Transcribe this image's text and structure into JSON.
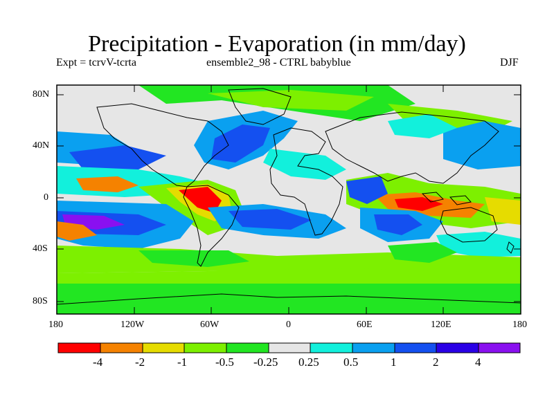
{
  "title": "Precipitation - Evaporation (in mm/day)",
  "subtitle_left": "Expt = tcrvV-tcrta",
  "subtitle_center": "ensemble2_98 - CTRL babyblue",
  "subtitle_right": "DJF",
  "lat_labels": [
    "80N",
    "40N",
    "0",
    "40S",
    "80S"
  ],
  "lon_labels": [
    "180",
    "120W",
    "60W",
    "0",
    "60E",
    "120E",
    "180"
  ],
  "colorbar": {
    "colors": [
      "#ff0000",
      "#f58200",
      "#e6dc00",
      "#7df000",
      "#22e622",
      "#e6e6e6",
      "#12f0dc",
      "#0aa0f0",
      "#1450f0",
      "#2a00e6",
      "#8a10f0"
    ],
    "labels": [
      "-4",
      "-2",
      "-1",
      "-0.5",
      "-0.25",
      "0.25",
      "0.5",
      "1",
      "2",
      "4"
    ]
  },
  "map": {
    "background_color": "#e6e6e6",
    "lat_range": [
      -90,
      90
    ],
    "lon_range": [
      -180,
      180
    ]
  }
}
